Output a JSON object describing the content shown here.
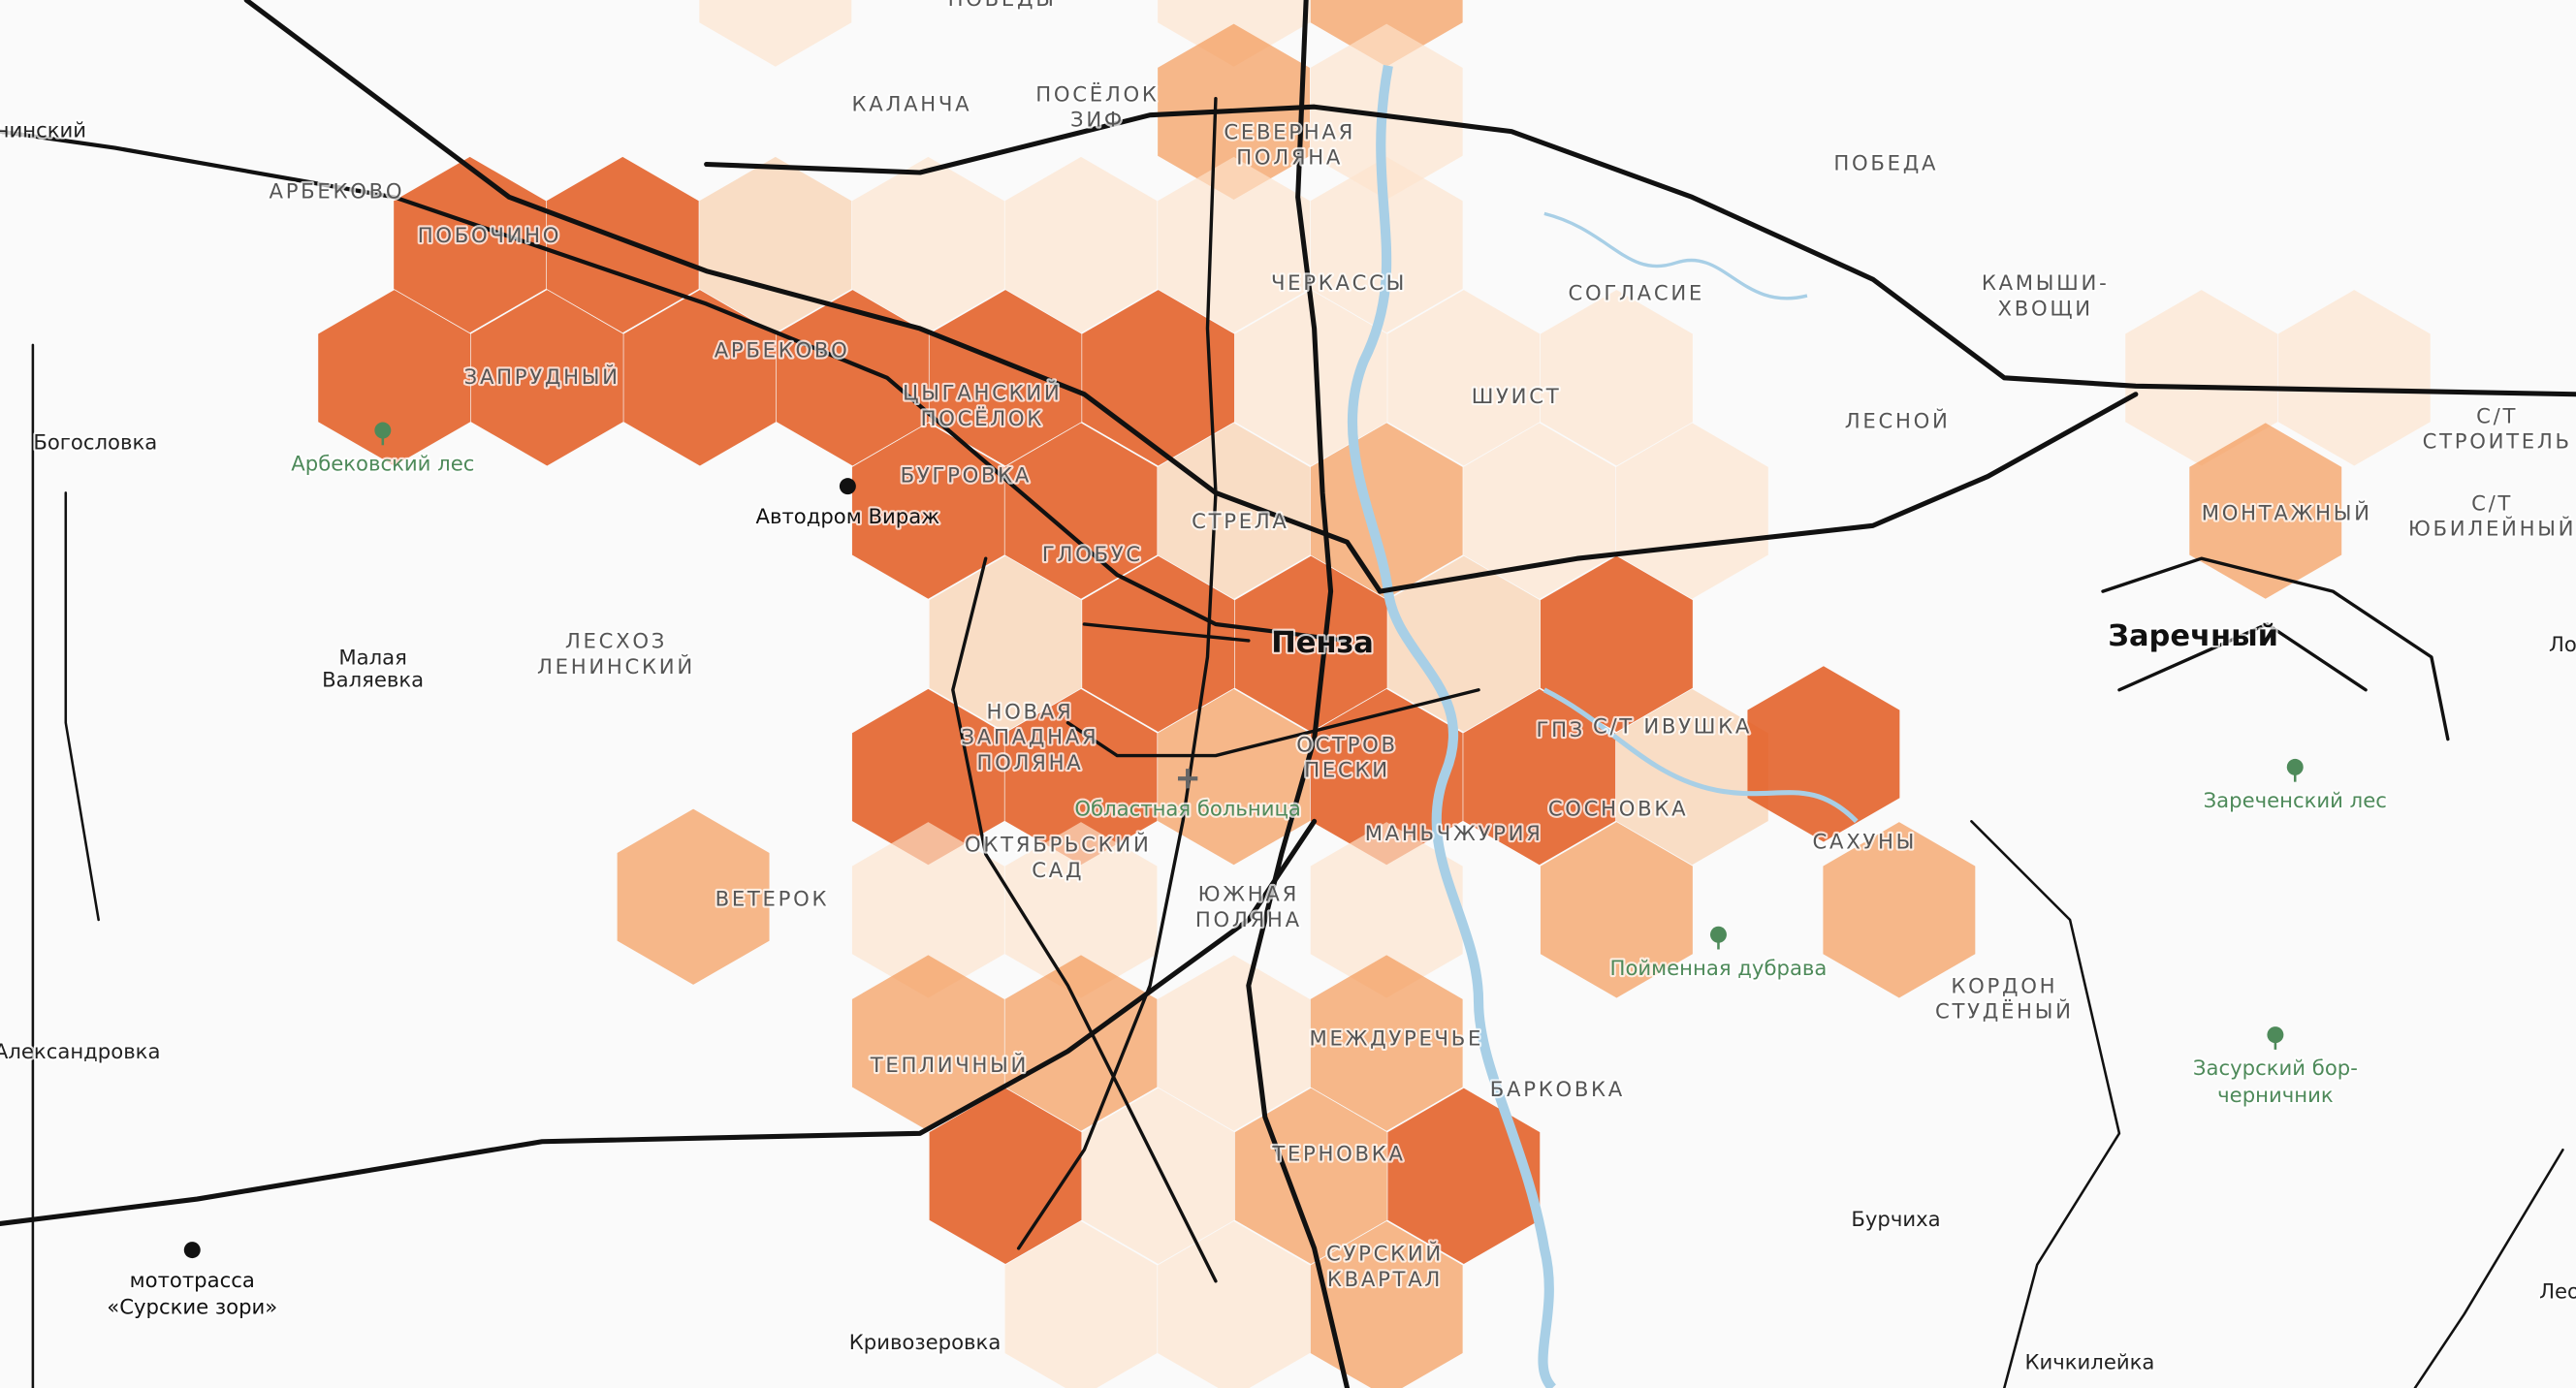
{
  "districts": [
    {
      "lines": [
        "АРБЕКОВО"
      ]
    },
    {
      "lines": [
        "КАЛАНЧА"
      ]
    },
    {
      "lines": [
        "ПОСЁЛОК",
        "ЗИФ"
      ]
    },
    {
      "lines": [
        "СЕВЕРНАЯ",
        "ПОЛЯНА"
      ]
    },
    {
      "lines": [
        "ПОБЕДА"
      ]
    },
    {
      "lines": [
        "ПОБОЧИНО"
      ]
    },
    {
      "lines": [
        "ЧЕРКАССЫ"
      ]
    },
    {
      "lines": [
        "СОГЛАСИЕ"
      ]
    },
    {
      "lines": [
        "КАМЫШИ-",
        "ХВОЩИ"
      ]
    },
    {
      "lines": [
        "АРБЕКОВО"
      ]
    },
    {
      "lines": [
        "ЗАПРУДНЫЙ"
      ]
    },
    {
      "lines": [
        "ЦЫГАНСКИЙ",
        "ПОСЁЛОК"
      ]
    },
    {
      "lines": [
        "ШУИСТ"
      ]
    },
    {
      "lines": [
        "ЛЕСНОЙ"
      ]
    },
    {
      "lines": [
        "С/Т",
        "СТРОИТЕЛЬ"
      ]
    },
    {
      "lines": [
        "БУГРОВКА"
      ]
    },
    {
      "lines": [
        "СТРЕЛА"
      ]
    },
    {
      "lines": [
        "МОНТАЖНЫЙ"
      ]
    },
    {
      "lines": [
        "С/Т",
        "ЮБИЛЕЙНЫЙ"
      ]
    },
    {
      "lines": [
        "ГЛОБУС"
      ]
    },
    {
      "lines": [
        "ЛЕСХОЗ",
        "ЛЕНИНСКИЙ"
      ]
    },
    {
      "lines": [
        "НОВАЯ",
        "ЗАПАДНАЯ",
        "ПОЛЯНА"
      ]
    },
    {
      "lines": [
        "ГПЗ"
      ]
    },
    {
      "lines": [
        "С/Т ИВУШКА"
      ]
    },
    {
      "lines": [
        "ОСТРОВ",
        "ПЕСКИ"
      ]
    },
    {
      "lines": [
        "СОСНОВКА"
      ]
    },
    {
      "lines": [
        "МАНЬЧЖУРИЯ"
      ]
    },
    {
      "lines": [
        "САХУНЫ"
      ]
    },
    {
      "lines": [
        "ОКТЯБРЬСКИЙ",
        "САД"
      ]
    },
    {
      "lines": [
        "ВЕТЕРОК"
      ]
    },
    {
      "lines": [
        "ЮЖНАЯ",
        "ПОЛЯНА"
      ]
    },
    {
      "lines": [
        "КОРДОН",
        "СТУДЁНЫЙ"
      ]
    },
    {
      "lines": [
        "ТЕПЛИЧНЫЙ"
      ]
    },
    {
      "lines": [
        "МЕЖДУРЕЧЬЕ"
      ]
    },
    {
      "lines": [
        "БАРКОВКА"
      ]
    },
    {
      "lines": [
        "ТЕРНОВКА"
      ]
    },
    {
      "lines": [
        "СУРСКИЙ",
        "КВАРТАЛ"
      ]
    },
    {
      "lines": [
        "ПОБЕДЫ"
      ]
    }
  ],
  "places": [
    {
      "lines": [
        "Богословка"
      ]
    },
    {
      "lines": [
        "Малая",
        "Валяевка"
      ]
    },
    {
      "lines": [
        "Александровка"
      ]
    },
    {
      "lines": [
        "Бурчиха"
      ]
    },
    {
      "lines": [
        "Кривозеровка"
      ]
    },
    {
      "lines": [
        "Кичкилейка"
      ]
    },
    {
      "lines": [
        "нинский"
      ]
    },
    {
      "lines": [
        "Лео"
      ]
    },
    {
      "lines": [
        "Ло"
      ]
    }
  ],
  "cities": [
    {
      "lines": [
        "Пенза"
      ]
    },
    {
      "lines": [
        "Заречный"
      ]
    }
  ],
  "pois": [
    {
      "lines": [
        "Арбековский лес"
      ]
    },
    {
      "lines": [
        "Автодром Вираж"
      ]
    },
    {
      "lines": [
        "Областная больница"
      ]
    },
    {
      "lines": [
        "Пойменная дубрава"
      ]
    },
    {
      "lines": [
        "Зареченский лес"
      ]
    },
    {
      "lines": [
        "Засурский бор-",
        "черничник"
      ]
    },
    {
      "lines": [
        "мототрасса",
        "«Сурские зори»"
      ]
    }
  ]
}
